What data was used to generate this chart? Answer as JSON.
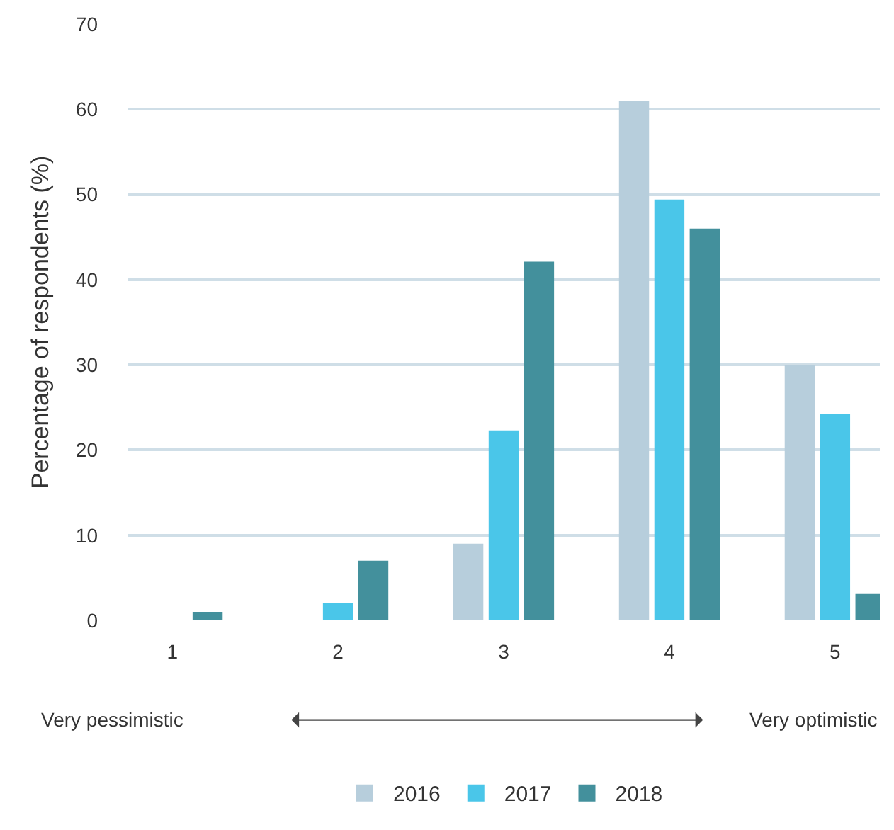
{
  "chart_data": {
    "type": "bar",
    "ylabel": "Percentage of respondents (%)",
    "categories": [
      "1",
      "2",
      "3",
      "4",
      "5"
    ],
    "series": [
      {
        "name": "2016",
        "color": "#b7cedc",
        "values": [
          0,
          0,
          9,
          61,
          30
        ]
      },
      {
        "name": "2017",
        "color": "#4ac6e9",
        "values": [
          0,
          2,
          22.3,
          49.4,
          24.2
        ]
      },
      {
        "name": "2018",
        "color": "#43909c",
        "values": [
          1,
          7,
          42.1,
          46,
          3.1
        ]
      }
    ],
    "ylim": [
      0,
      70
    ],
    "yticks": [
      0,
      10,
      20,
      30,
      40,
      50,
      60,
      70
    ],
    "grid": "y",
    "legend": "bottom",
    "annotations": [
      "Very pessimistic",
      "Very optimistic"
    ]
  }
}
